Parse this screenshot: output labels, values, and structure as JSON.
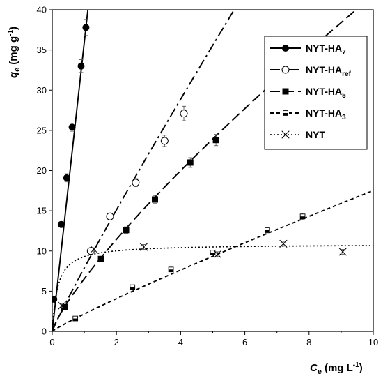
{
  "chart_data": {
    "type": "scatter",
    "title": "",
    "xlabel": {
      "symbol": "C",
      "subscript": "e",
      "unit": "(mg L",
      "unit_sup": "-1",
      "unit_end": ")"
    },
    "ylabel": {
      "symbol": "q",
      "subscript": "e",
      "unit": "(mg g",
      "unit_sup": "-1",
      "unit_end": ")"
    },
    "xlim": [
      0,
      10
    ],
    "ylim": [
      0,
      40
    ],
    "xticks": [
      "0",
      "2",
      "4",
      "6",
      "8",
      "10"
    ],
    "yticks": [
      "0",
      "5",
      "10",
      "15",
      "20",
      "25",
      "30",
      "35",
      "40"
    ],
    "grid": false,
    "legend_position": "top-right",
    "series": [
      {
        "name": "NYT-HA",
        "name_sub": "7",
        "marker": "filled-circle",
        "line": "solid",
        "x": [
          0.05,
          0.28,
          0.45,
          0.62,
          0.9,
          1.05
        ],
        "y": [
          4.0,
          13.3,
          19.1,
          25.4,
          33.0,
          37.8
        ],
        "err": [
          0.3,
          0.3,
          0.5,
          0.5,
          0.8,
          1.0
        ],
        "fit": {
          "model": "linear",
          "slope": 36,
          "intercept": 0
        }
      },
      {
        "name": "NYT-HA",
        "name_sub": "ref",
        "marker": "open-circle",
        "line": "dash-dot",
        "x": [
          1.2,
          1.8,
          2.6,
          3.5,
          4.1
        ],
        "y": [
          10.0,
          14.3,
          18.5,
          23.7,
          27.1
        ],
        "err": [
          0.3,
          0.4,
          0.5,
          0.7,
          0.9
        ],
        "fit": {
          "model": "freundlich",
          "K": 7.9,
          "n": 0.935
        }
      },
      {
        "name": "NYT-HA",
        "name_sub": "5",
        "marker": "filled-square",
        "line": "dash",
        "x": [
          0.38,
          1.52,
          2.3,
          3.2,
          4.3,
          5.1
        ],
        "y": [
          3.0,
          9.0,
          12.6,
          16.4,
          21.0,
          23.8
        ],
        "err": [
          0.3,
          0.3,
          0.4,
          0.5,
          0.6,
          0.7
        ],
        "fit": {
          "model": "freundlich",
          "K": 6.55,
          "n": 0.805
        }
      },
      {
        "name": "NYT-HA",
        "name_sub": "3",
        "marker": "half-square",
        "line": "short-dash",
        "x": [
          0.72,
          2.5,
          3.7,
          5.0,
          6.7,
          7.8
        ],
        "y": [
          1.6,
          5.5,
          7.7,
          9.8,
          12.6,
          14.3
        ],
        "err": [
          0.15,
          0.2,
          0.25,
          0.3,
          0.35,
          0.4
        ],
        "fit": {
          "model": "freundlich",
          "K": 2.17,
          "n": 0.907
        }
      },
      {
        "name": "NYT",
        "name_sub": "",
        "marker": "cross",
        "line": "dotted",
        "x": [
          0.3,
          1.3,
          2.85,
          5.15,
          7.2,
          9.05
        ],
        "y": [
          3.2,
          10.2,
          10.5,
          9.6,
          10.9,
          9.9
        ],
        "err": [
          0.2,
          0.2,
          0.3,
          0.3,
          0.3,
          0.3
        ],
        "fit": {
          "model": "langmuir",
          "qmax": 10.85,
          "KL": 6
        }
      }
    ]
  }
}
